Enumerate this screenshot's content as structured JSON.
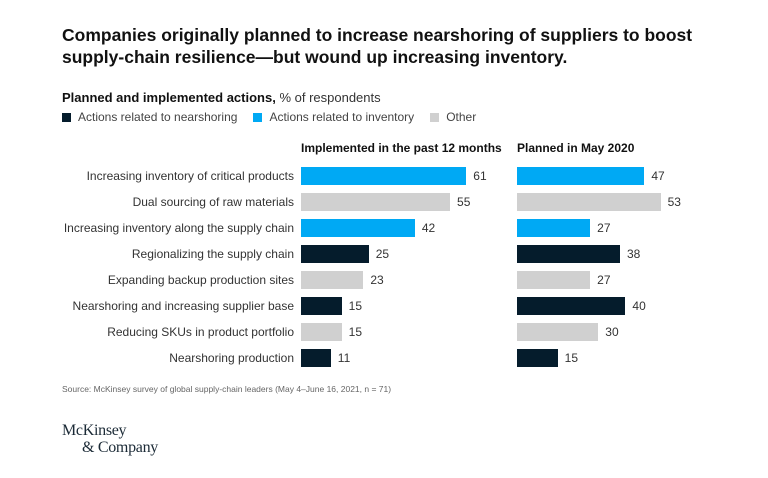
{
  "title": "Companies originally planned to increase nearshoring of suppliers to boost supply-chain resilience—but wound up increasing inventory.",
  "subtitle_bold": "Planned and implemented actions,",
  "subtitle_rest": " % of respondents",
  "colors": {
    "nearshoring": "#051c2c",
    "inventory": "#00a9f4",
    "other": "#d0d0d0"
  },
  "legend": [
    {
      "label": "Actions related to nearshoring",
      "key": "nearshoring"
    },
    {
      "label": "Actions related to inventory",
      "key": "inventory"
    },
    {
      "label": "Other",
      "key": "other"
    }
  ],
  "chart_data": {
    "type": "bar",
    "orientation": "horizontal",
    "categories": [
      "Increasing inventory of critical products",
      "Dual sourcing of raw materials",
      "Increasing inventory along the supply chain",
      "Regionalizing the supply chain",
      "Expanding backup production sites",
      "Nearshoring and increasing supplier base",
      "Reducing SKUs in product portfolio",
      "Nearshoring production"
    ],
    "category_group": [
      "inventory",
      "other",
      "inventory",
      "nearshoring",
      "other",
      "nearshoring",
      "other",
      "nearshoring"
    ],
    "series": [
      {
        "name": "Implemented in the past 12 months",
        "values": [
          61,
          55,
          42,
          25,
          23,
          15,
          15,
          11
        ]
      },
      {
        "name": "Planned in May 2020",
        "values": [
          47,
          53,
          27,
          38,
          27,
          40,
          30,
          15
        ]
      }
    ],
    "unit": "% of respondents"
  },
  "source": "Source: McKinsey survey of global supply-chain leaders (May 4–June 16, 2021, n = 71)",
  "logo": {
    "line1": "McKinsey",
    "line2": "& Company"
  }
}
